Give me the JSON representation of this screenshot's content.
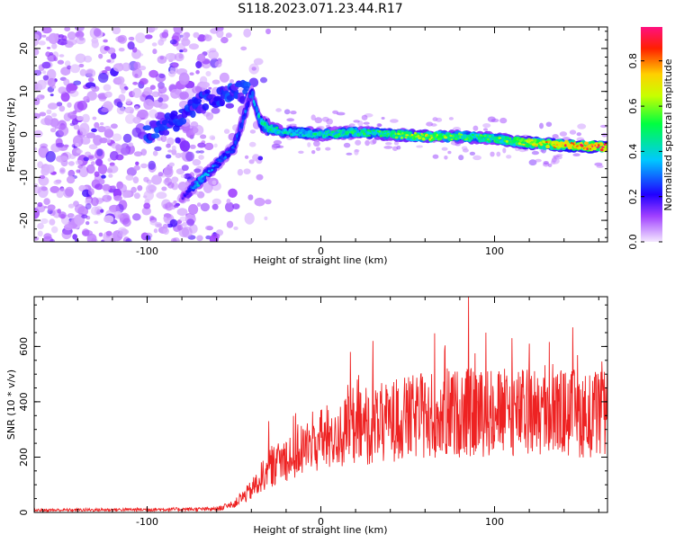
{
  "title": "S118.2023.071.23.44.R17",
  "chart_data": [
    {
      "type": "heatmap",
      "title": "S118.2023.071.23.44.R17",
      "xlabel": "Height of straight line (km)",
      "ylabel": "Frequency (Hz)",
      "xlim": [
        -165,
        165
      ],
      "ylim": [
        -25,
        25
      ],
      "x_ticks": [
        -100,
        0,
        100
      ],
      "y_ticks": [
        -20,
        -10,
        0,
        10,
        20
      ],
      "colorbar": {
        "label": "Normalized spectral amplitude",
        "range": [
          0,
          0.95
        ],
        "ticks": [
          "0.0",
          "0.2",
          "0.4",
          "0.6",
          "0.8"
        ],
        "colors": [
          "#f2e6ff",
          "#8a2be2",
          "#0000ff",
          "#00ffff",
          "#00ff00",
          "#ffff00",
          "#ff0000",
          "#ff1493"
        ]
      },
      "ridge": {
        "x": [
          -80,
          -70,
          -60,
          -50,
          -45,
          -40,
          -35,
          -30,
          -20,
          -10,
          0,
          20,
          40,
          60,
          80,
          100,
          120,
          140,
          165
        ],
        "y": [
          -15,
          -11,
          -7,
          -3,
          3,
          10,
          3,
          1.5,
          0.5,
          0.3,
          0,
          0.5,
          0,
          -0.5,
          -0.5,
          -1,
          -2,
          -2.5,
          -3
        ],
        "amplitude": [
          0.15,
          0.4,
          0.3,
          0.3,
          0.3,
          0.3,
          0.45,
          0.5,
          0.45,
          0.45,
          0.5,
          0.5,
          0.55,
          0.7,
          0.55,
          0.55,
          0.7,
          0.85,
          0.9
        ]
      },
      "upper_branch": {
        "x": [
          -100,
          -90,
          -80,
          -70,
          -60,
          -50,
          -45,
          -40
        ],
        "y": [
          0,
          2,
          4,
          7,
          9,
          10,
          10,
          10
        ]
      }
    },
    {
      "type": "line",
      "xlabel": "Height of straight line (km)",
      "ylabel": "SNR (10 * v/v)",
      "xlim": [
        -165,
        165
      ],
      "ylim": [
        0,
        780
      ],
      "x_ticks": [
        -100,
        0,
        100
      ],
      "y_ticks": [
        0,
        200,
        400,
        600
      ],
      "color": "#ee2222",
      "envelope": {
        "x": [
          -165,
          -60,
          -50,
          -40,
          -35,
          -30,
          -20,
          -10,
          0,
          20,
          40,
          60,
          80,
          100,
          120,
          140,
          165
        ],
        "y": [
          8,
          12,
          30,
          80,
          120,
          160,
          200,
          230,
          260,
          300,
          330,
          350,
          360,
          360,
          360,
          360,
          350
        ]
      },
      "peaks": [
        {
          "x": -30,
          "y": 330
        },
        {
          "x": 17,
          "y": 580
        },
        {
          "x": 30,
          "y": 620
        },
        {
          "x": 85,
          "y": 780
        },
        {
          "x": 95,
          "y": 650
        },
        {
          "x": 110,
          "y": 630
        },
        {
          "x": 120,
          "y": 610
        }
      ]
    }
  ]
}
